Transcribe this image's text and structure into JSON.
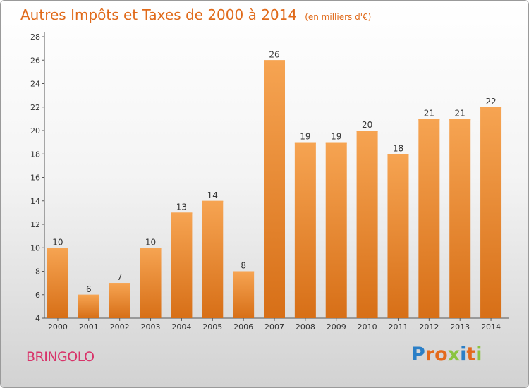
{
  "chart_data": {
    "type": "bar",
    "title": "Autres Impôts et Taxes de 2000 à 2014",
    "subtitle": "(en milliers d'€)",
    "xlabel": "",
    "ylabel": "",
    "categories": [
      "2000",
      "2001",
      "2002",
      "2003",
      "2004",
      "2005",
      "2006",
      "2007",
      "2008",
      "2009",
      "2010",
      "2011",
      "2012",
      "2013",
      "2014"
    ],
    "values": [
      10,
      6,
      7,
      10,
      13,
      14,
      8,
      26,
      19,
      19,
      20,
      18,
      21,
      21,
      22
    ],
    "ylim": [
      4,
      28
    ],
    "yticks": [
      4,
      6,
      8,
      10,
      12,
      14,
      16,
      18,
      20,
      22,
      24,
      26,
      28
    ],
    "grid": false,
    "legend": "none",
    "bar_color": "#f28b30",
    "bar_color_light": "#f6a452",
    "bar_color_dark": "#d76f17"
  },
  "footer": {
    "place_name": "BRINGOLO",
    "logo_letters": [
      {
        "char": "P",
        "color": "#2b7fc7"
      },
      {
        "char": "r",
        "color": "#e46a1c"
      },
      {
        "char": "o",
        "color": "#e46a1c"
      },
      {
        "char": "x",
        "color": "#8bc43f"
      },
      {
        "char": "i",
        "color": "#2b7fc7"
      },
      {
        "char": "t",
        "color": "#e46a1c"
      },
      {
        "char": "i",
        "color": "#8bc43f"
      }
    ]
  }
}
